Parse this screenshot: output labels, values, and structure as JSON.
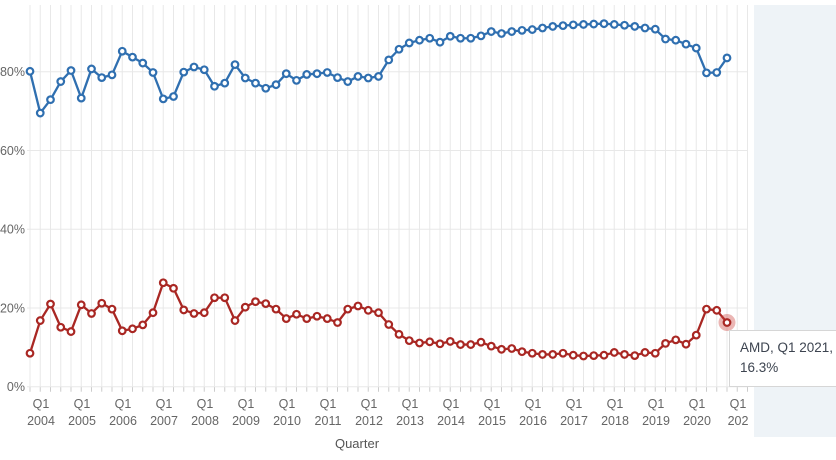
{
  "page": {
    "background_color": "#ffffff",
    "side_panel_color": "#eef3f7",
    "grid_color": "#e8e8e8",
    "tick_color": "#cccccc",
    "axis_text_color": "#666666"
  },
  "axis": {
    "x_title": "Quarter",
    "quarter_tick_prefix": "Q1",
    "year_labels": [
      "2004",
      "2005",
      "2006",
      "2007",
      "2008",
      "2009",
      "2010",
      "2011",
      "2012",
      "2013",
      "2014",
      "2015",
      "2016",
      "2017",
      "2018",
      "2019",
      "2020",
      "202"
    ]
  },
  "tooltip": {
    "line1": "AMD, Q1 2021,",
    "line2": "16.3%"
  },
  "chart_data": {
    "type": "line",
    "title": "",
    "xlabel": "Quarter",
    "ylabel": "",
    "x_start": "Q1 2004",
    "x_end": "Q1 2021",
    "x_step": "quarter",
    "ylim": [
      0,
      97
    ],
    "ytick_values": [
      0,
      20,
      40,
      60,
      80
    ],
    "ytick_labels": [
      "0%",
      "20%",
      "40%",
      "60%",
      "80%"
    ],
    "grid": "on",
    "legend": "none",
    "highlighted_point": {
      "series": "AMD",
      "x": "Q1 2021",
      "value": 16.3
    },
    "series": [
      {
        "name": "unlabeled blue series",
        "color": "#2f6fb0",
        "marker": "open-circle",
        "values": [
          80.1,
          69.5,
          72.9,
          77.5,
          80.3,
          73.3,
          80.7,
          78.5,
          79.2,
          85.2,
          83.7,
          82.2,
          79.8,
          73.1,
          73.7,
          79.9,
          81.2,
          80.5,
          76.3,
          77.1,
          81.8,
          78.4,
          77.1,
          75.8,
          76.7,
          79.5,
          77.8,
          79.3,
          79.5,
          79.8,
          78.5,
          77.5,
          78.8,
          78.4,
          78.8,
          83.0,
          85.7,
          87.3,
          88.0,
          88.5,
          87.5,
          89.0,
          88.5,
          88.5,
          89.1,
          90.2,
          89.7,
          90.2,
          90.5,
          90.7,
          91.1,
          91.5,
          91.7,
          91.9,
          92.0,
          92.1,
          92.2,
          92.0,
          91.8,
          91.5,
          91.1,
          90.8,
          88.3,
          88.0,
          87.0,
          86.0,
          79.7,
          79.8,
          83.5
        ]
      },
      {
        "name": "AMD",
        "color": "#a92723",
        "marker": "open-circle",
        "halo_color": "rgba(202,62,58,0.38)",
        "values": [
          8.5,
          16.8,
          21.0,
          15.1,
          14.0,
          20.8,
          18.6,
          21.2,
          19.7,
          14.2,
          14.7,
          15.7,
          18.8,
          26.4,
          25.0,
          19.5,
          18.6,
          18.8,
          22.6,
          22.6,
          16.8,
          20.2,
          21.6,
          21.1,
          19.7,
          17.3,
          18.4,
          17.3,
          17.9,
          17.3,
          16.3,
          19.7,
          20.5,
          19.4,
          18.8,
          15.8,
          13.3,
          11.7,
          11.1,
          11.4,
          10.9,
          11.5,
          10.7,
          10.7,
          11.3,
          10.3,
          9.5,
          9.7,
          8.9,
          8.5,
          8.2,
          8.2,
          8.5,
          8.0,
          7.8,
          7.9,
          8.0,
          8.7,
          8.2,
          7.9,
          8.7,
          8.5,
          11.0,
          11.9,
          10.8,
          13.1,
          19.7,
          19.4,
          16.3
        ]
      }
    ]
  }
}
